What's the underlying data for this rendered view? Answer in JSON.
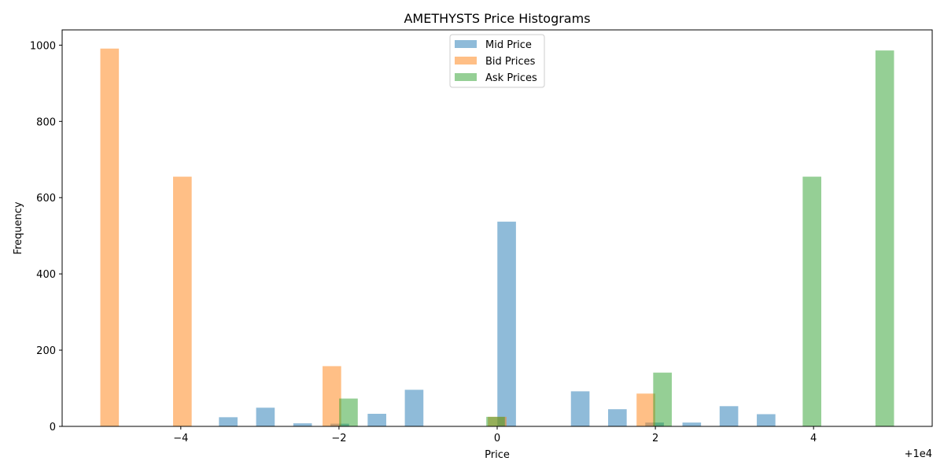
{
  "chart_data": {
    "type": "bar",
    "title": "AMETHYSTS Price Histograms",
    "xlabel": "Price",
    "ylabel": "Frequency",
    "x_offset_label": "+1e4",
    "xlim": [
      -5.5,
      5.5
    ],
    "ylim": [
      0,
      1040
    ],
    "x_ticks": [
      -4,
      -2,
      0,
      2,
      4
    ],
    "x_tick_labels": [
      "−4",
      "−2",
      "0",
      "2",
      "4"
    ],
    "y_ticks": [
      0,
      200,
      400,
      600,
      800,
      1000
    ],
    "y_tick_labels": [
      "0",
      "200",
      "400",
      "600",
      "800",
      "1000"
    ],
    "grid": false,
    "legend_position": "top-center",
    "series": [
      {
        "name": "Mid Price",
        "color": "#1f77b4",
        "bars": [
          {
            "x": -3.4,
            "value": 24
          },
          {
            "x": -2.93,
            "value": 49
          },
          {
            "x": -2.46,
            "value": 8
          },
          {
            "x": -1.99,
            "value": 7
          },
          {
            "x": -1.52,
            "value": 33
          },
          {
            "x": -1.05,
            "value": 96
          },
          {
            "x": 0.12,
            "value": 537
          },
          {
            "x": 1.05,
            "value": 92
          },
          {
            "x": 1.52,
            "value": 45
          },
          {
            "x": 1.99,
            "value": 10
          },
          {
            "x": 2.46,
            "value": 10
          },
          {
            "x": 2.93,
            "value": 53
          },
          {
            "x": 3.4,
            "value": 32
          }
        ]
      },
      {
        "name": "Bid Prices",
        "color": "#ff7f0e",
        "bars": [
          {
            "x": -4.9,
            "value": 991
          },
          {
            "x": -3.98,
            "value": 655
          },
          {
            "x": -2.09,
            "value": 158
          },
          {
            "x": 0.0,
            "value": 25
          },
          {
            "x": 1.88,
            "value": 86
          }
        ]
      },
      {
        "name": "Ask Prices",
        "color": "#2ca02c",
        "bars": [
          {
            "x": -1.88,
            "value": 73
          },
          {
            "x": -0.02,
            "value": 25
          },
          {
            "x": 2.09,
            "value": 141
          },
          {
            "x": 3.98,
            "value": 655
          },
          {
            "x": 4.9,
            "value": 986
          }
        ]
      }
    ]
  }
}
